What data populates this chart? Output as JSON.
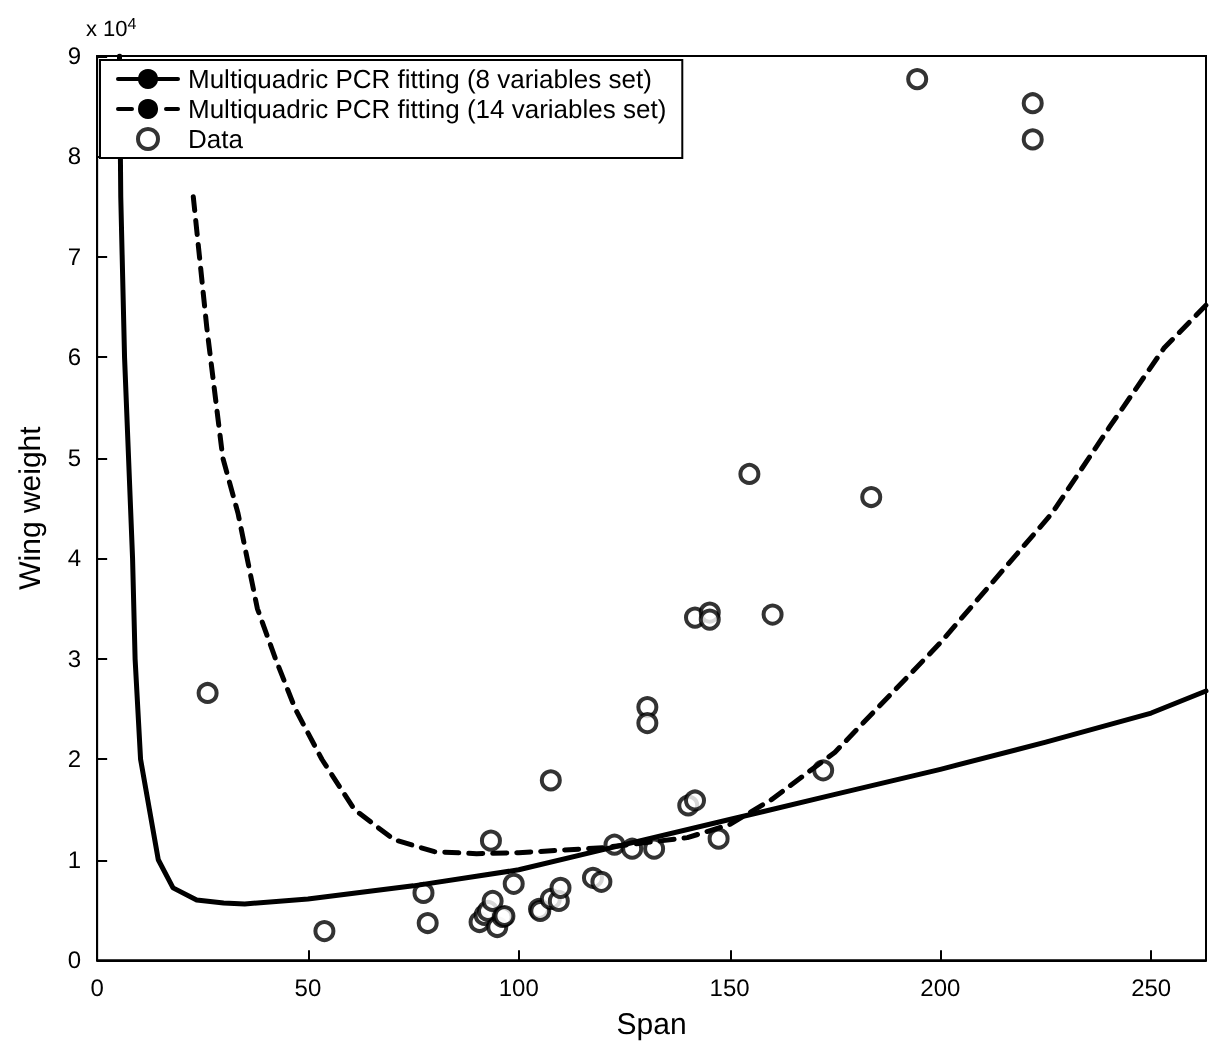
{
  "chart_data": {
    "type": "scatter",
    "xlabel": "Span",
    "ylabel": "Wing weight",
    "annotations": [
      "x 10$^{4}$"
    ],
    "xlim": [
      0,
      263
    ],
    "xticks": [
      0,
      50,
      100,
      150,
      200,
      250
    ],
    "ylim": [
      0,
      9
    ],
    "yticks": [
      0,
      1,
      2,
      3,
      4,
      5,
      6,
      7,
      8,
      9
    ],
    "grid": false,
    "legend": "top left",
    "series": [
      {
        "name": "Multiquadric PCR fitting (8 variables set)",
        "type": "line",
        "line_style": "solid",
        "marker": "none",
        "color": "#000000",
        "x": [
          5.3,
          5.6,
          6.5,
          8.4,
          9.0,
          10.3,
          14.5,
          18,
          23.6,
          30,
          35,
          50,
          75,
          100,
          120,
          150,
          175,
          200,
          225,
          250,
          263
        ],
        "values": [
          9,
          7.6,
          6,
          4,
          3,
          2,
          1,
          0.72,
          0.6,
          0.57,
          0.56,
          0.61,
          0.74,
          0.9,
          1.1,
          1.4,
          1.65,
          1.9,
          2.17,
          2.46,
          2.68
        ]
      },
      {
        "name": "Multiquadric PCR fitting (14 variables set)",
        "type": "line",
        "line_style": "dashed",
        "marker": "none",
        "color": "#000000",
        "x": [
          22.8,
          26,
          29.8,
          33.4,
          38,
          42.3,
          47,
          53.3,
          61,
          70.4,
          80,
          90,
          100,
          120,
          140,
          150,
          160,
          175,
          200,
          226.5,
          240,
          253,
          263
        ],
        "values": [
          7.6,
          6.3,
          5.0,
          4.45,
          3.5,
          3,
          2.5,
          2,
          1.5,
          1.2,
          1.08,
          1.06,
          1.07,
          1.12,
          1.22,
          1.35,
          1.6,
          2.07,
          3.16,
          4.45,
          5.3,
          6.09,
          6.52
        ]
      },
      {
        "name": "Data",
        "marker": "circle",
        "color": "#000000",
        "x": [
          26.2,
          53.9,
          77.4,
          78.4,
          93.4,
          107.6,
          90.7,
          91.9,
          92.7,
          93.8,
          94.9,
          96.2,
          96.6,
          98.8,
          104.8,
          105.1,
          107.6,
          109.5,
          109.9,
          117.6,
          119.6,
          122.7,
          126.9,
          132.1,
          130.5,
          130.5,
          141.8,
          145.3,
          145.3,
          160.2,
          140.2,
          141.8,
          147.4,
          172.2,
          194.5,
          221.9,
          221.9,
          154.7,
          183.6
        ],
        "values": [
          2.66,
          0.29,
          0.67,
          0.37,
          1.19,
          1.79,
          0.38,
          0.45,
          0.49,
          0.59,
          0.33,
          0.43,
          0.44,
          0.76,
          0.51,
          0.49,
          0.61,
          0.59,
          0.72,
          0.82,
          0.78,
          1.15,
          1.11,
          1.11,
          2.52,
          2.36,
          3.41,
          3.46,
          3.39,
          3.44,
          1.54,
          1.59,
          1.21,
          1.89,
          8.77,
          8.53,
          8.17,
          4.84,
          4.61
        ]
      }
    ]
  }
}
